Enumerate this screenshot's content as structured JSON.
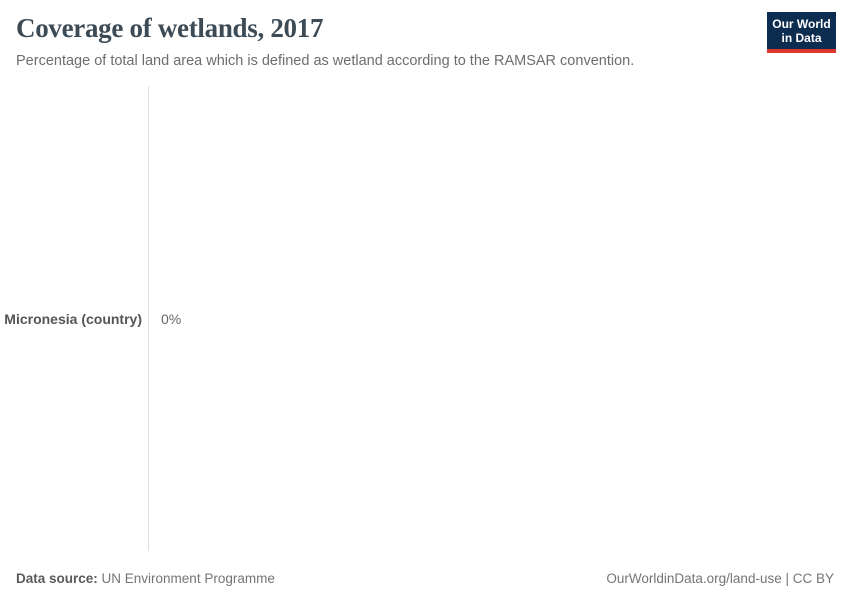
{
  "header": {
    "title": "Coverage of wetlands, 2017",
    "subtitle": "Percentage of total land area which is defined as wetland according to the RAMSAR convention.",
    "logo": {
      "line1": "Our World",
      "line2": "in Data"
    }
  },
  "chart_data": {
    "type": "bar",
    "orientation": "horizontal",
    "title": "Coverage of wetlands, 2017",
    "subtitle": "Percentage of total land area which is defined as wetland according to the RAMSAR convention.",
    "categories": [
      "Micronesia (country)"
    ],
    "values": [
      0
    ],
    "value_labels": [
      "0%"
    ],
    "unit": "%",
    "xlabel": "",
    "ylabel": "",
    "xlim": [
      0,
      1
    ],
    "grid": false,
    "legend": "none"
  },
  "footer": {
    "source_label": "Data source:",
    "source_value": " UN Environment Programme",
    "url": "OurWorldinData.org/land-use",
    "separator": " | ",
    "license": "CC BY"
  },
  "colors": {
    "title": "#3d4b56",
    "subtitle": "#6d6d6d",
    "entity_label": "#555555",
    "value_label": "#666666",
    "axis_line": "#dedede",
    "logo_background": "#0d2d50",
    "logo_accent_red": "#e0362c",
    "background": "#ffffff"
  }
}
